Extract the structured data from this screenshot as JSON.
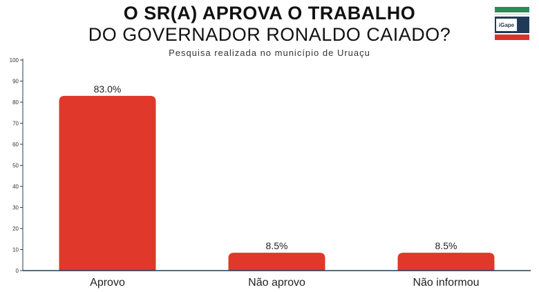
{
  "header": {
    "title_line1": "O SR(A) APROVA O TRABALHO",
    "title_line2": "DO GOVERNADOR RONALDO CAIADO?",
    "subtitle": "Pesquisa realizada no município de Uruaçu",
    "logo_text": "iGape"
  },
  "colors": {
    "bar": "#e0382b",
    "axis": "#1f3b57"
  },
  "chart_data": {
    "type": "bar",
    "title": "O SR(A) APROVA O TRABALHO DO GOVERNADOR RONALDO CAIADO?",
    "subtitle": "Pesquisa realizada no município de Uruaçu",
    "categories": [
      "Aprovo",
      "Não aprovo",
      "Não informou"
    ],
    "values": [
      83.0,
      8.5,
      8.5
    ],
    "data_labels": [
      "83.0%",
      "8.5%",
      "8.5%"
    ],
    "ylim": [
      0,
      100
    ],
    "yticks": [
      0,
      10,
      20,
      30,
      40,
      50,
      60,
      70,
      80,
      90,
      100
    ],
    "grid": false,
    "legend": "none"
  }
}
